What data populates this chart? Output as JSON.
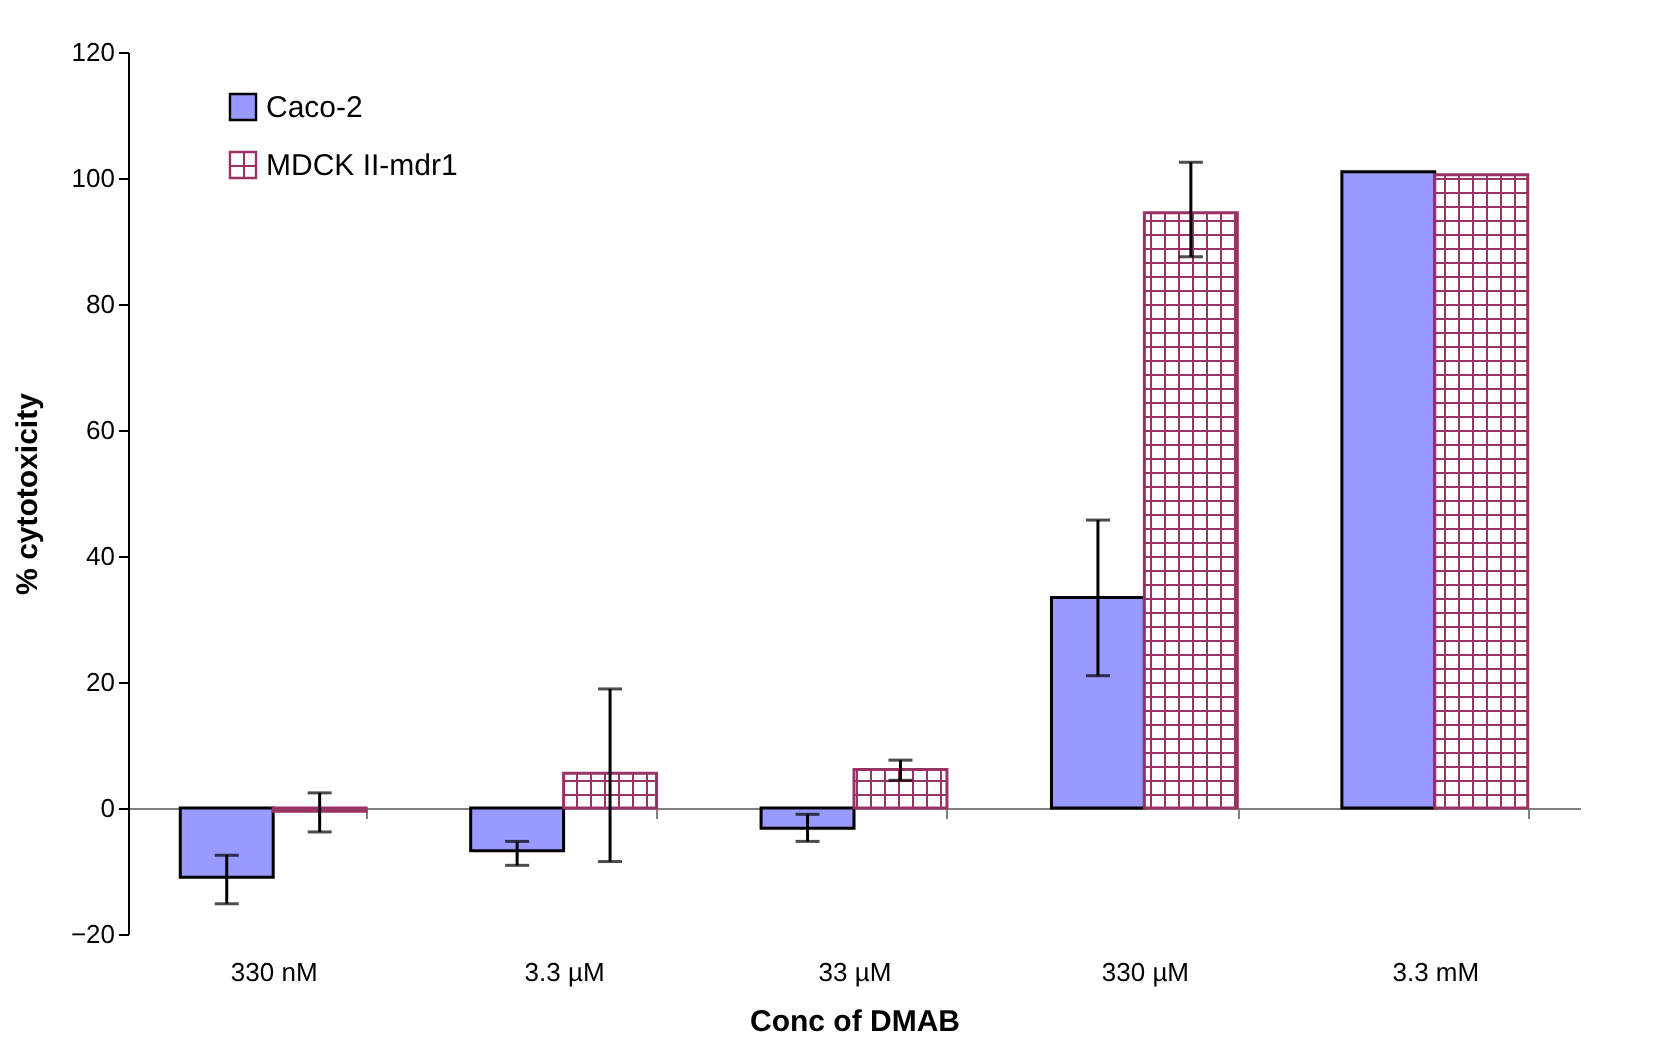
{
  "chart_data": {
    "type": "bar",
    "xlabel": "Conc of DMAB",
    "ylabel": "% cytotoxicity",
    "categories": [
      "330 nM",
      "3.3 µM",
      "33 µM",
      "330 µM",
      "3.3 mM"
    ],
    "series": [
      {
        "name": "Caco-2",
        "color": "#9999ff",
        "values": [
          -11,
          -6.8,
          -3.2,
          33.4,
          101
        ],
        "errors": [
          [
            -15.2,
            -7.5
          ],
          [
            -9.1,
            -5.3
          ],
          [
            -5.3,
            -1
          ],
          [
            21,
            45.7
          ],
          null
        ]
      },
      {
        "name": "MDCK II-mdr1",
        "color": "#993366",
        "values": [
          -0.5,
          5.5,
          6.1,
          94.5,
          100.5
        ],
        "errors": [
          [
            -3.8,
            2.4
          ],
          [
            -8.5,
            18.9
          ],
          [
            4.4,
            7.6
          ],
          [
            87.5,
            102.5
          ],
          null
        ]
      }
    ],
    "ylim": [
      -20,
      120
    ],
    "yticks": [
      -20,
      0,
      20,
      40,
      60,
      80,
      100,
      120
    ],
    "legend": "top left"
  }
}
